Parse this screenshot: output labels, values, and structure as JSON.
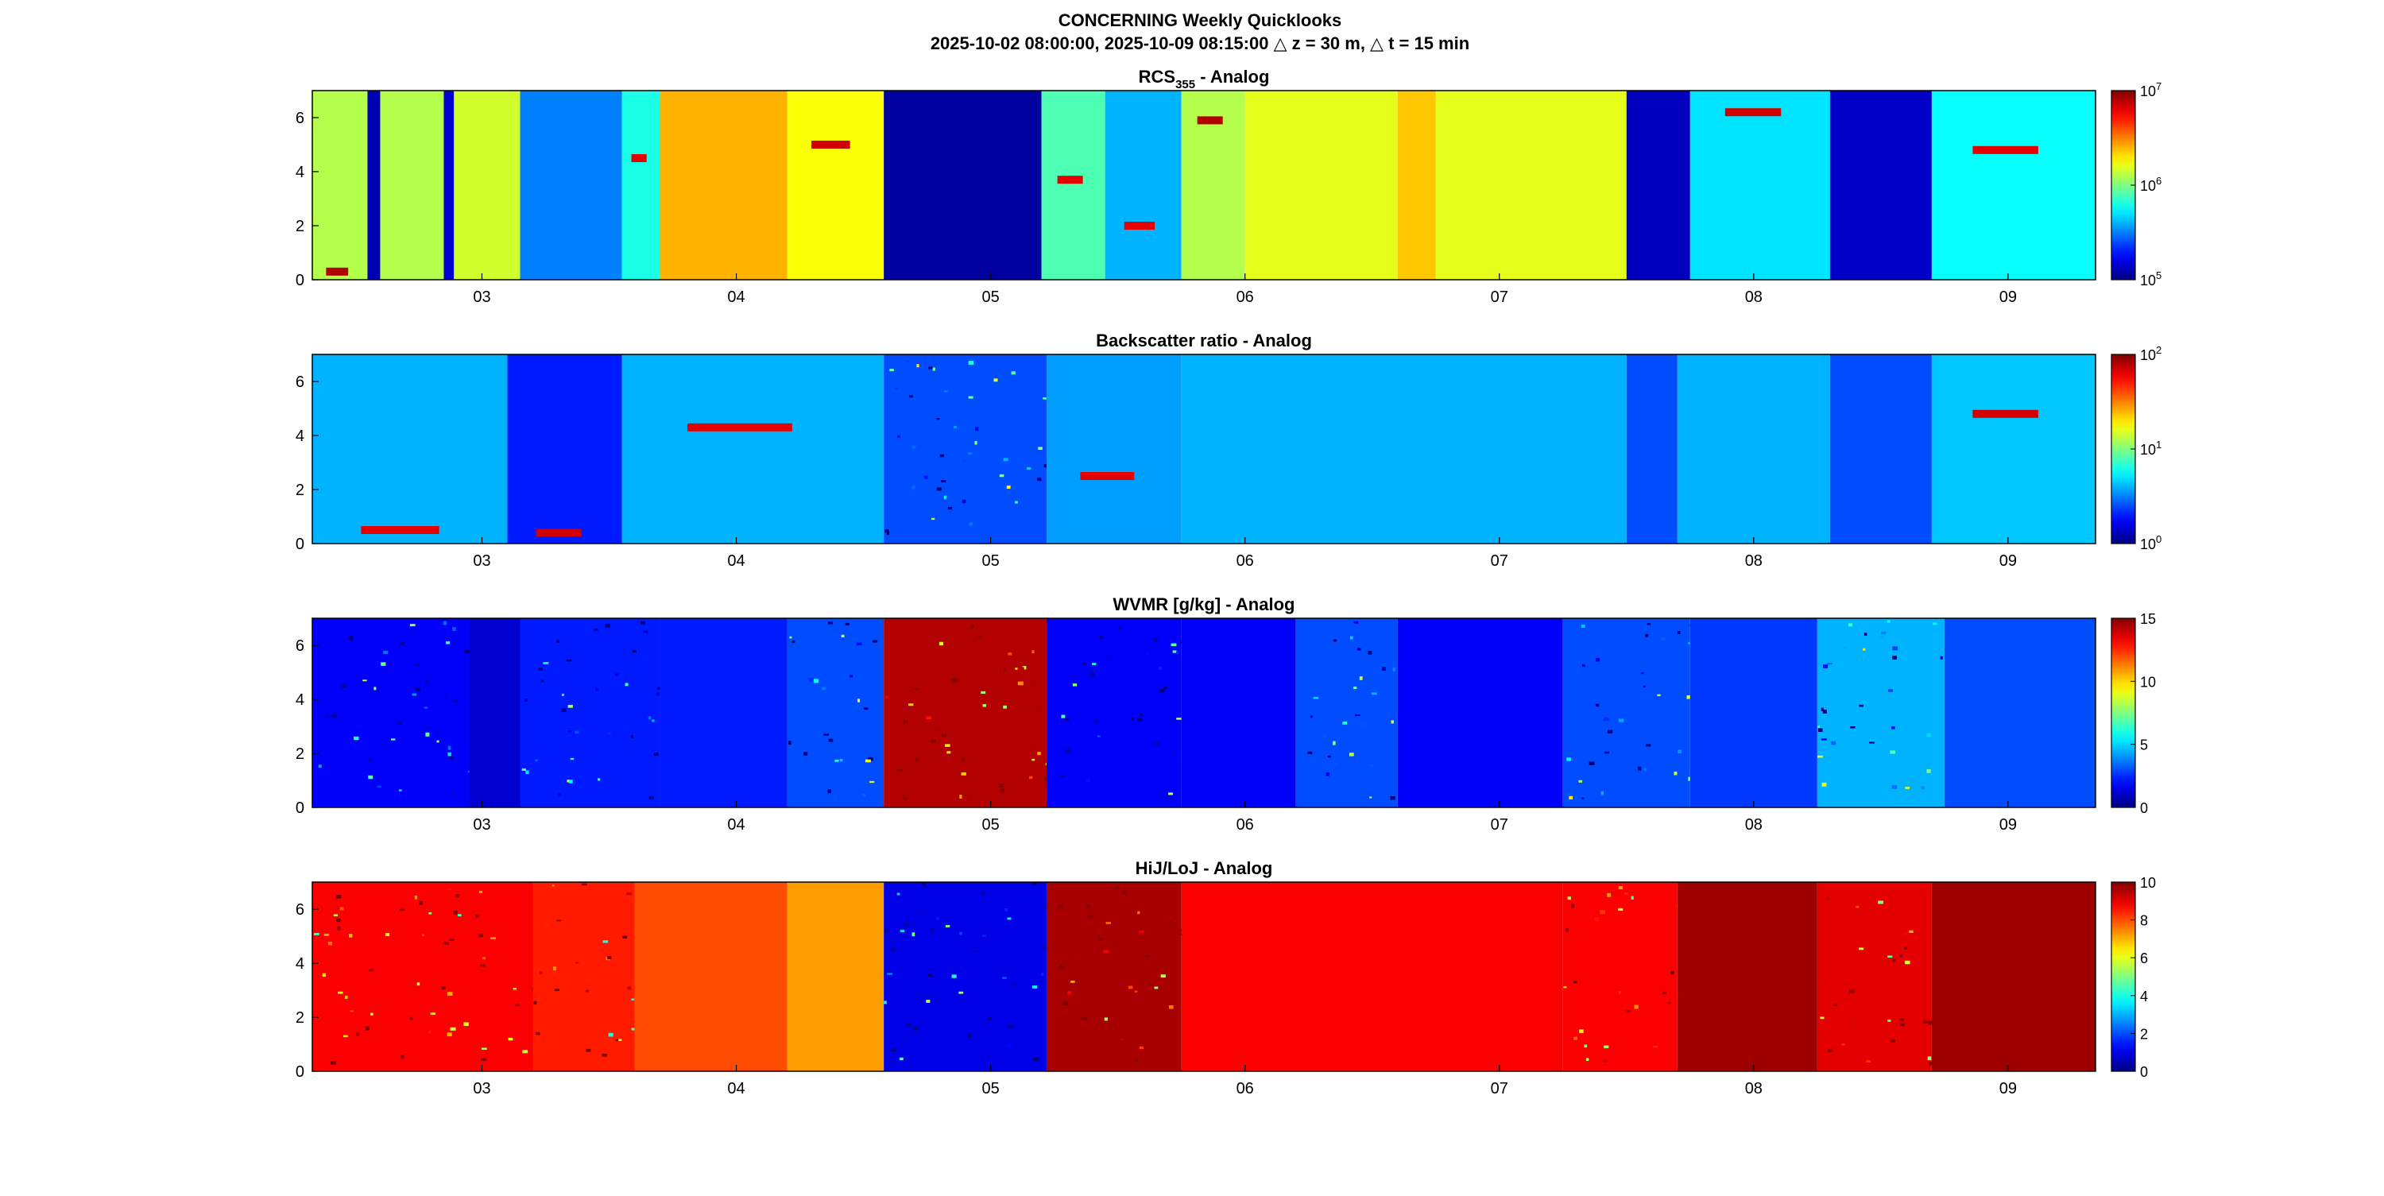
{
  "figure": {
    "title_line1": "CONCERNING Weekly Quicklooks",
    "title_line2": "2025-10-02 08:00:00, 2025-10-09 08:15:00 △ z = 30 m, △ t = 15 min"
  },
  "chart_data": [
    {
      "type": "heatmap",
      "title": "RCS",
      "title_sub": "355",
      "title_suffix": " - Analog",
      "xlabel": "",
      "ylabel": "",
      "x_ticks": [
        "03",
        "04",
        "05",
        "06",
        "07",
        "08",
        "09"
      ],
      "x_tick_values_days": [
        3,
        4,
        5,
        6,
        7,
        8,
        9
      ],
      "xlim_days": [
        2.333,
        9.344
      ],
      "y_ticks": [
        "0",
        "2",
        "4",
        "6"
      ],
      "ylim": [
        0,
        7
      ],
      "colorbar": {
        "scale": "log",
        "limits": [
          100000,
          10000000
        ],
        "tick_labels": [
          {
            "base": "10",
            "exp": "7"
          },
          {
            "base": "10",
            "exp": "6"
          },
          {
            "base": "10",
            "exp": "5"
          }
        ]
      },
      "colormap": "jet",
      "segments": [
        {
          "x0": 2.333,
          "x1": 2.55,
          "level": 0.55,
          "cloud_level": 0.95,
          "cloud_h": 0.3
        },
        {
          "x0": 2.55,
          "x1": 2.6,
          "level": 0.05
        },
        {
          "x0": 2.6,
          "x1": 2.85,
          "level": 0.55
        },
        {
          "x0": 2.85,
          "x1": 2.89,
          "level": 0.08
        },
        {
          "x0": 2.89,
          "x1": 3.15,
          "level": 0.58
        },
        {
          "x0": 3.15,
          "x1": 3.55,
          "level": 0.25
        },
        {
          "x0": 3.55,
          "x1": 3.7,
          "level": 0.4,
          "cloud_level": 0.9,
          "cloud_h": 4.5
        },
        {
          "x0": 3.7,
          "x1": 4.2,
          "level": 0.7
        },
        {
          "x0": 4.2,
          "x1": 4.58,
          "level": 0.62,
          "cloud_level": 0.92,
          "cloud_h": 5.0
        },
        {
          "x0": 4.58,
          "x1": 5.2,
          "level": 0.03
        },
        {
          "x0": 5.2,
          "x1": 5.45,
          "level": 0.45,
          "cloud_level": 0.9,
          "cloud_h": 3.7
        },
        {
          "x0": 5.45,
          "x1": 5.75,
          "level": 0.3,
          "cloud_level": 0.9,
          "cloud_h": 2.0
        },
        {
          "x0": 5.75,
          "x1": 6.0,
          "level": 0.55,
          "cloud_level": 0.95,
          "cloud_h": 5.9
        },
        {
          "x0": 6.0,
          "x1": 6.6,
          "level": 0.6
        },
        {
          "x0": 6.6,
          "x1": 6.75,
          "level": 0.68
        },
        {
          "x0": 6.75,
          "x1": 7.5,
          "level": 0.6
        },
        {
          "x0": 7.5,
          "x1": 7.75,
          "level": 0.06
        },
        {
          "x0": 7.75,
          "x1": 8.3,
          "level": 0.35,
          "cloud_level": 0.92,
          "cloud_h": 6.2
        },
        {
          "x0": 8.3,
          "x1": 8.7,
          "level": 0.07
        },
        {
          "x0": 8.7,
          "x1": 9.344,
          "level": 0.38,
          "cloud_level": 0.9,
          "cloud_h": 4.8
        }
      ]
    },
    {
      "type": "heatmap",
      "title": "Backscatter ratio - Analog",
      "xlabel": "",
      "ylabel": "",
      "x_ticks": [
        "03",
        "04",
        "05",
        "06",
        "07",
        "08",
        "09"
      ],
      "x_tick_values_days": [
        3,
        4,
        5,
        6,
        7,
        8,
        9
      ],
      "xlim_days": [
        2.333,
        9.344
      ],
      "y_ticks": [
        "0",
        "2",
        "4",
        "6"
      ],
      "ylim": [
        0,
        7
      ],
      "colorbar": {
        "scale": "log",
        "limits": [
          1,
          100
        ],
        "tick_labels": [
          {
            "base": "10",
            "exp": "2"
          },
          {
            "base": "10",
            "exp": "1"
          },
          {
            "base": "10",
            "exp": "0"
          }
        ]
      },
      "colormap": "jet",
      "segments": [
        {
          "x0": 2.333,
          "x1": 3.1,
          "level": 0.3,
          "cloud_level": 0.9,
          "cloud_h": 0.5
        },
        {
          "x0": 3.1,
          "x1": 3.55,
          "level": 0.15,
          "cloud_level": 0.92,
          "cloud_h": 0.4
        },
        {
          "x0": 3.55,
          "x1": 4.58,
          "level": 0.3,
          "cloud_level": 0.9,
          "cloud_h": 4.3
        },
        {
          "x0": 4.58,
          "x1": 5.22,
          "level": 0.2,
          "noise": true
        },
        {
          "x0": 5.22,
          "x1": 5.75,
          "level": 0.28,
          "cloud_level": 0.9,
          "cloud_h": 2.5
        },
        {
          "x0": 5.75,
          "x1": 7.5,
          "level": 0.3
        },
        {
          "x0": 7.5,
          "x1": 7.7,
          "level": 0.2
        },
        {
          "x0": 7.7,
          "x1": 8.3,
          "level": 0.3
        },
        {
          "x0": 8.3,
          "x1": 8.7,
          "level": 0.2
        },
        {
          "x0": 8.7,
          "x1": 9.344,
          "level": 0.32,
          "cloud_level": 0.92,
          "cloud_h": 4.8
        }
      ]
    },
    {
      "type": "heatmap",
      "title": "WVMR [g/kg] - Analog",
      "xlabel": "",
      "ylabel": "",
      "x_ticks": [
        "03",
        "04",
        "05",
        "06",
        "07",
        "08",
        "09"
      ],
      "x_tick_values_days": [
        3,
        4,
        5,
        6,
        7,
        8,
        9
      ],
      "xlim_days": [
        2.333,
        9.344
      ],
      "y_ticks": [
        "0",
        "2",
        "4",
        "6"
      ],
      "ylim": [
        0,
        7
      ],
      "colorbar": {
        "scale": "linear",
        "limits": [
          0,
          15
        ],
        "ticks": [
          "15",
          "10",
          "5",
          "0"
        ]
      },
      "colormap": "jet",
      "segments": [
        {
          "x0": 2.333,
          "x1": 2.95,
          "level": 0.12,
          "noise": true
        },
        {
          "x0": 2.95,
          "x1": 3.15,
          "level": 0.08
        },
        {
          "x0": 3.15,
          "x1": 3.7,
          "level": 0.15,
          "noise": true
        },
        {
          "x0": 3.7,
          "x1": 4.2,
          "level": 0.15
        },
        {
          "x0": 4.2,
          "x1": 4.58,
          "level": 0.2,
          "noise": true
        },
        {
          "x0": 4.58,
          "x1": 5.22,
          "level": 0.95,
          "noise": true
        },
        {
          "x0": 5.22,
          "x1": 5.75,
          "level": 0.12,
          "noise": true
        },
        {
          "x0": 5.75,
          "x1": 6.2,
          "level": 0.12
        },
        {
          "x0": 6.2,
          "x1": 6.6,
          "level": 0.2,
          "noise": true
        },
        {
          "x0": 6.6,
          "x1": 7.25,
          "level": 0.12
        },
        {
          "x0": 7.25,
          "x1": 7.75,
          "level": 0.2,
          "noise": true
        },
        {
          "x0": 7.75,
          "x1": 8.25,
          "level": 0.18
        },
        {
          "x0": 8.25,
          "x1": 8.75,
          "level": 0.3,
          "noise": true
        },
        {
          "x0": 8.75,
          "x1": 9.344,
          "level": 0.2
        }
      ]
    },
    {
      "type": "heatmap",
      "title": "HiJ/LoJ - Analog",
      "xlabel": "",
      "ylabel": "",
      "x_ticks": [
        "03",
        "04",
        "05",
        "06",
        "07",
        "08",
        "09"
      ],
      "x_tick_values_days": [
        3,
        4,
        5,
        6,
        7,
        8,
        9
      ],
      "xlim_days": [
        2.333,
        9.344
      ],
      "y_ticks": [
        "0",
        "2",
        "4",
        "6"
      ],
      "ylim": [
        0,
        7
      ],
      "colorbar": {
        "scale": "linear",
        "limits": [
          0,
          10
        ],
        "ticks": [
          "10",
          "8",
          "6",
          "4",
          "2",
          "0"
        ]
      },
      "colormap": "jet",
      "segments": [
        {
          "x0": 2.333,
          "x1": 3.2,
          "level": 0.88,
          "noise": true
        },
        {
          "x0": 3.2,
          "x1": 3.6,
          "level": 0.85,
          "noise": true
        },
        {
          "x0": 3.6,
          "x1": 4.2,
          "level": 0.8
        },
        {
          "x0": 4.2,
          "x1": 4.58,
          "level": 0.72
        },
        {
          "x0": 4.58,
          "x1": 5.22,
          "level": 0.1,
          "noise": true
        },
        {
          "x0": 5.22,
          "x1": 5.75,
          "level": 0.96,
          "noise": true
        },
        {
          "x0": 5.75,
          "x1": 7.25,
          "level": 0.88
        },
        {
          "x0": 7.25,
          "x1": 7.7,
          "level": 0.88,
          "noise": true
        },
        {
          "x0": 7.7,
          "x1": 8.25,
          "level": 0.97
        },
        {
          "x0": 8.25,
          "x1": 8.7,
          "level": 0.9,
          "noise": true
        },
        {
          "x0": 8.7,
          "x1": 9.344,
          "level": 0.97
        }
      ]
    }
  ]
}
